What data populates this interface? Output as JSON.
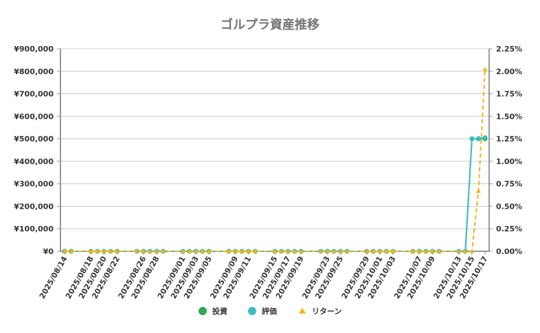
{
  "chart_data": {
    "type": "line",
    "title": "ゴルプラ資産推移",
    "categories": [
      "2025/08/14",
      "2025/08/18",
      "2025/08/20",
      "2025/08/22",
      "2025/08/26",
      "2025/08/28",
      "2025/09/01",
      "2025/09/03",
      "2025/09/05",
      "2025/09/09",
      "2025/09/11",
      "2025/09/15",
      "2025/09/17",
      "2025/09/19",
      "2025/09/23",
      "2025/09/25",
      "2025/09/29",
      "2025/10/01",
      "2025/10/03",
      "2025/10/07",
      "2025/10/09",
      "2025/10/13",
      "2025/10/15",
      "2025/10/17"
    ],
    "left_axis": {
      "ylim": [
        0,
        900000
      ],
      "ticks": [
        "¥0",
        "¥100,000",
        "¥200,000",
        "¥300,000",
        "¥400,000",
        "¥500,000",
        "¥600,000",
        "¥700,000",
        "¥800,000",
        "¥900,000"
      ]
    },
    "right_axis": {
      "ylim": [
        0,
        2.25
      ],
      "ticks": [
        "0.00%",
        "0.25%",
        "0.50%",
        "0.75%",
        "1.00%",
        "1.25%",
        "1.50%",
        "1.75%",
        "2.00%",
        "2.25%"
      ]
    },
    "series": [
      {
        "name": "投資",
        "axis": "left",
        "color": "#2fa84f",
        "marker": "circle",
        "style": "solid",
        "x": [
          "2025/08/14",
          "2025/08/15",
          "2025/08/18",
          "2025/08/19",
          "2025/08/20",
          "2025/08/21",
          "2025/08/22",
          "2025/08/25",
          "2025/08/26",
          "2025/08/27",
          "2025/08/28",
          "2025/08/29",
          "2025/09/01",
          "2025/09/02",
          "2025/09/03",
          "2025/09/04",
          "2025/09/05",
          "2025/09/08",
          "2025/09/09",
          "2025/09/10",
          "2025/09/11",
          "2025/09/12",
          "2025/09/15",
          "2025/09/16",
          "2025/09/17",
          "2025/09/18",
          "2025/09/19",
          "2025/09/22",
          "2025/09/23",
          "2025/09/24",
          "2025/09/25",
          "2025/09/26",
          "2025/09/29",
          "2025/09/30",
          "2025/10/01",
          "2025/10/02",
          "2025/10/03",
          "2025/10/06",
          "2025/10/07",
          "2025/10/08",
          "2025/10/09",
          "2025/10/10",
          "2025/10/13",
          "2025/10/14",
          "2025/10/15",
          "2025/10/16",
          "2025/10/17"
        ],
        "values": [
          0,
          0,
          0,
          0,
          0,
          0,
          0,
          0,
          0,
          0,
          0,
          0,
          0,
          0,
          0,
          0,
          0,
          0,
          0,
          0,
          0,
          0,
          0,
          0,
          0,
          0,
          0,
          0,
          0,
          0,
          0,
          0,
          0,
          0,
          0,
          0,
          0,
          0,
          0,
          0,
          0,
          0,
          0,
          0,
          500000,
          500000,
          500000
        ]
      },
      {
        "name": "評価",
        "axis": "left",
        "color": "#3fbcc0",
        "marker": "circle",
        "style": "solid",
        "x": [
          "2025/08/14",
          "2025/08/15",
          "2025/08/18",
          "2025/08/19",
          "2025/08/20",
          "2025/08/21",
          "2025/08/22",
          "2025/08/25",
          "2025/08/26",
          "2025/08/27",
          "2025/08/28",
          "2025/08/29",
          "2025/09/01",
          "2025/09/02",
          "2025/09/03",
          "2025/09/04",
          "2025/09/05",
          "2025/09/08",
          "2025/09/09",
          "2025/09/10",
          "2025/09/11",
          "2025/09/12",
          "2025/09/15",
          "2025/09/16",
          "2025/09/17",
          "2025/09/18",
          "2025/09/19",
          "2025/09/22",
          "2025/09/23",
          "2025/09/24",
          "2025/09/25",
          "2025/09/26",
          "2025/09/29",
          "2025/09/30",
          "2025/10/01",
          "2025/10/02",
          "2025/10/03",
          "2025/10/06",
          "2025/10/07",
          "2025/10/08",
          "2025/10/09",
          "2025/10/10",
          "2025/10/13",
          "2025/10/14",
          "2025/10/15",
          "2025/10/16",
          "2025/10/17"
        ],
        "values": [
          0,
          0,
          0,
          0,
          0,
          0,
          0,
          0,
          0,
          0,
          0,
          0,
          0,
          0,
          0,
          0,
          0,
          0,
          0,
          0,
          0,
          0,
          0,
          0,
          0,
          0,
          0,
          0,
          0,
          0,
          0,
          0,
          0,
          0,
          0,
          0,
          0,
          0,
          0,
          0,
          0,
          0,
          0,
          0,
          500000,
          501000,
          505000
        ]
      },
      {
        "name": "リターン",
        "axis": "right",
        "color": "#f5b316",
        "marker": "triangle",
        "style": "dashed",
        "x": [
          "2025/08/14",
          "2025/08/15",
          "2025/08/18",
          "2025/08/19",
          "2025/08/20",
          "2025/08/21",
          "2025/08/22",
          "2025/08/25",
          "2025/08/26",
          "2025/08/27",
          "2025/08/28",
          "2025/08/29",
          "2025/09/01",
          "2025/09/02",
          "2025/09/03",
          "2025/09/04",
          "2025/09/05",
          "2025/09/08",
          "2025/09/09",
          "2025/09/10",
          "2025/09/11",
          "2025/09/12",
          "2025/09/15",
          "2025/09/16",
          "2025/09/17",
          "2025/09/18",
          "2025/09/19",
          "2025/09/22",
          "2025/09/23",
          "2025/09/24",
          "2025/09/25",
          "2025/09/26",
          "2025/09/29",
          "2025/09/30",
          "2025/10/01",
          "2025/10/02",
          "2025/10/03",
          "2025/10/06",
          "2025/10/07",
          "2025/10/08",
          "2025/10/09",
          "2025/10/10",
          "2025/10/13",
          "2025/10/14",
          "2025/10/15",
          "2025/10/16",
          "2025/10/17"
        ],
        "values": [
          0,
          0,
          0,
          0,
          0,
          0,
          0,
          0,
          0,
          0,
          0,
          0,
          0,
          0,
          0,
          0,
          0,
          0,
          0,
          0,
          0,
          0,
          0,
          0,
          0,
          0,
          0,
          0,
          0,
          0,
          0,
          0,
          0,
          0,
          0,
          0,
          0,
          0,
          0,
          0,
          0,
          0,
          0,
          0,
          0,
          0.67,
          2.02
        ]
      }
    ],
    "grid": true,
    "legend": "bottom"
  }
}
